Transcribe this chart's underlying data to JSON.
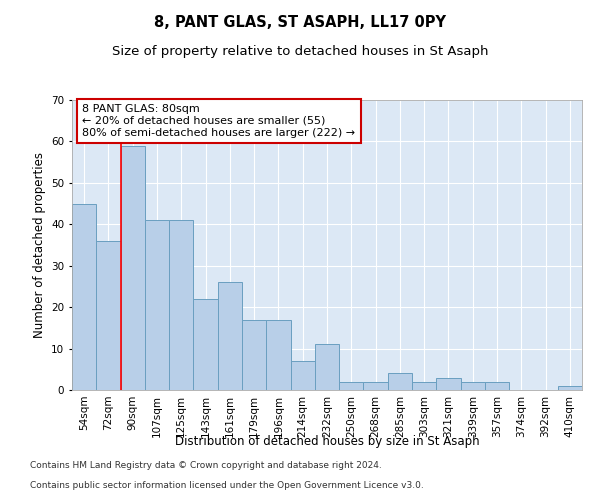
{
  "title": "8, PANT GLAS, ST ASAPH, LL17 0PY",
  "subtitle": "Size of property relative to detached houses in St Asaph",
  "xlabel": "Distribution of detached houses by size in St Asaph",
  "ylabel": "Number of detached properties",
  "categories": [
    "54sqm",
    "72sqm",
    "90sqm",
    "107sqm",
    "125sqm",
    "143sqm",
    "161sqm",
    "179sqm",
    "196sqm",
    "214sqm",
    "232sqm",
    "250sqm",
    "268sqm",
    "285sqm",
    "303sqm",
    "321sqm",
    "339sqm",
    "357sqm",
    "374sqm",
    "392sqm",
    "410sqm"
  ],
  "values": [
    45,
    36,
    59,
    41,
    41,
    22,
    26,
    17,
    17,
    7,
    11,
    2,
    2,
    4,
    2,
    3,
    2,
    2,
    0,
    0,
    1
  ],
  "bar_color": "#b8cfe8",
  "bar_edge_color": "#6a9fc0",
  "red_line_x": 1.5,
  "ylim": [
    0,
    70
  ],
  "yticks": [
    0,
    10,
    20,
    30,
    40,
    50,
    60,
    70
  ],
  "annotation_text": "8 PANT GLAS: 80sqm\n← 20% of detached houses are smaller (55)\n80% of semi-detached houses are larger (222) →",
  "annotation_box_color": "#ffffff",
  "annotation_box_edge": "#cc0000",
  "footnote1": "Contains HM Land Registry data © Crown copyright and database right 2024.",
  "footnote2": "Contains public sector information licensed under the Open Government Licence v3.0.",
  "plot_bg_color": "#dce8f5",
  "figure_bg_color": "#ffffff",
  "grid_color": "#ffffff",
  "title_fontsize": 10.5,
  "subtitle_fontsize": 9.5,
  "axis_label_fontsize": 8.5,
  "tick_fontsize": 7.5,
  "annotation_fontsize": 8,
  "footnote_fontsize": 6.5
}
